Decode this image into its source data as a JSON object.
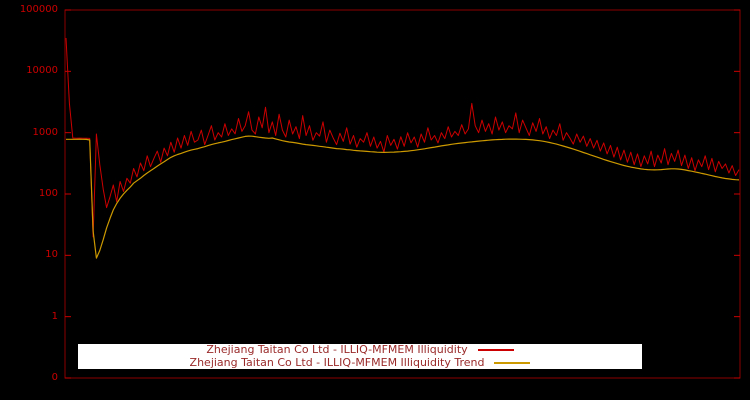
{
  "chart_data": {
    "type": "line",
    "title": "",
    "xlabel": "",
    "ylabel": "",
    "y_scale": "log",
    "ylim": [
      0.1,
      100000
    ],
    "x_tick_labels": [],
    "y_tick_values": [
      100000,
      10000,
      1000,
      100,
      10,
      1,
      0.1
    ],
    "y_tick_labels": [
      "100000",
      "10000",
      "1000",
      "100",
      "10",
      "1",
      "0"
    ],
    "grid": false,
    "legend_position": "bottom-center",
    "colors": {
      "background": "#000000",
      "border": "#8b0000",
      "ticks": "#cc0000",
      "legend_bg": "#ffffff",
      "legend_text": "#9a2a2a"
    },
    "series": [
      {
        "name": "Zhejiang Taitan Co Ltd - ILLIQ-MFMEM Illiquidity",
        "color": "#cc0000",
        "values": [
          35000,
          3000,
          820,
          810,
          815,
          808,
          812,
          805,
          20,
          950,
          300,
          120,
          60,
          90,
          140,
          75,
          160,
          110,
          180,
          150,
          260,
          190,
          320,
          240,
          420,
          280,
          380,
          500,
          330,
          560,
          420,
          700,
          480,
          820,
          560,
          900,
          620,
          1050,
          700,
          760,
          1100,
          640,
          900,
          1300,
          760,
          1000,
          850,
          1400,
          900,
          1150,
          960,
          1700,
          1050,
          1300,
          2200,
          1100,
          950,
          1800,
          1200,
          2600,
          1000,
          1500,
          900,
          2000,
          1100,
          850,
          1600,
          950,
          1250,
          800,
          1900,
          900,
          1300,
          750,
          1000,
          880,
          1500,
          700,
          1100,
          820,
          640,
          980,
          720,
          1200,
          650,
          900,
          580,
          800,
          700,
          1000,
          600,
          850,
          560,
          720,
          480,
          900,
          620,
          780,
          540,
          860,
          600,
          1000,
          680,
          850,
          580,
          950,
          700,
          1200,
          760,
          900,
          680,
          1000,
          800,
          1250,
          850,
          1050,
          900,
          1350,
          950,
          1150,
          3000,
          1300,
          1000,
          1600,
          1050,
          1400,
          950,
          1800,
          1100,
          1500,
          1000,
          1300,
          1150,
          2100,
          1000,
          1600,
          1200,
          900,
          1450,
          1050,
          1700,
          950,
          1250,
          800,
          1100,
          900,
          1400,
          750,
          1000,
          820,
          650,
          950,
          700,
          880,
          600,
          800,
          560,
          750,
          500,
          680,
          450,
          620,
          400,
          580,
          360,
          520,
          330,
          480,
          300,
          450,
          280,
          420,
          310,
          500,
          280,
          430,
          320,
          550,
          300,
          460,
          340,
          520,
          290,
          430,
          260,
          390,
          240,
          360,
          280,
          420,
          250,
          380,
          230,
          340,
          260,
          310,
          220,
          290,
          200,
          250
        ]
      },
      {
        "name": "Zhejiang Taitan Co Ltd - ILLIQ-MFMEM Illiquidity Trend",
        "color": "#cc9900",
        "values": [
          780,
          781,
          779,
          780,
          782,
          780,
          778,
          760,
          25,
          9,
          12,
          18,
          28,
          40,
          55,
          70,
          85,
          100,
          115,
          130,
          150,
          165,
          180,
          200,
          220,
          240,
          260,
          285,
          310,
          335,
          365,
          395,
          420,
          440,
          460,
          480,
          500,
          520,
          535,
          550,
          570,
          590,
          615,
          640,
          660,
          680,
          700,
          720,
          745,
          770,
          795,
          820,
          845,
          870,
          880,
          875,
          860,
          845,
          830,
          820,
          810,
          820,
          790,
          765,
          740,
          720,
          705,
          695,
          680,
          665,
          650,
          640,
          630,
          620,
          610,
          600,
          590,
          580,
          570,
          560,
          550,
          545,
          540,
          530,
          525,
          515,
          510,
          505,
          500,
          495,
          490,
          485,
          480,
          478,
          476,
          478,
          480,
          482,
          485,
          490,
          495,
          500,
          508,
          515,
          525,
          535,
          545,
          558,
          570,
          582,
          595,
          608,
          620,
          632,
          645,
          658,
          668,
          678,
          688,
          698,
          708,
          718,
          728,
          738,
          746,
          754,
          762,
          768,
          774,
          778,
          782,
          785,
          786,
          785,
          783,
          780,
          776,
          770,
          762,
          752,
          740,
          726,
          710,
          692,
          672,
          650,
          628,
          606,
          584,
          562,
          540,
          518,
          496,
          475,
          455,
          436,
          418,
          400,
          383,
          367,
          352,
          338,
          325,
          313,
          302,
          292,
          283,
          275,
          268,
          262,
          257,
          253,
          250,
          248,
          247,
          248,
          250,
          253,
          256,
          258,
          258,
          256,
          252,
          247,
          241,
          235,
          229,
          223,
          217,
          211,
          205,
          199,
          193,
          188,
          183,
          179,
          176,
          173,
          171,
          170
        ]
      }
    ]
  }
}
